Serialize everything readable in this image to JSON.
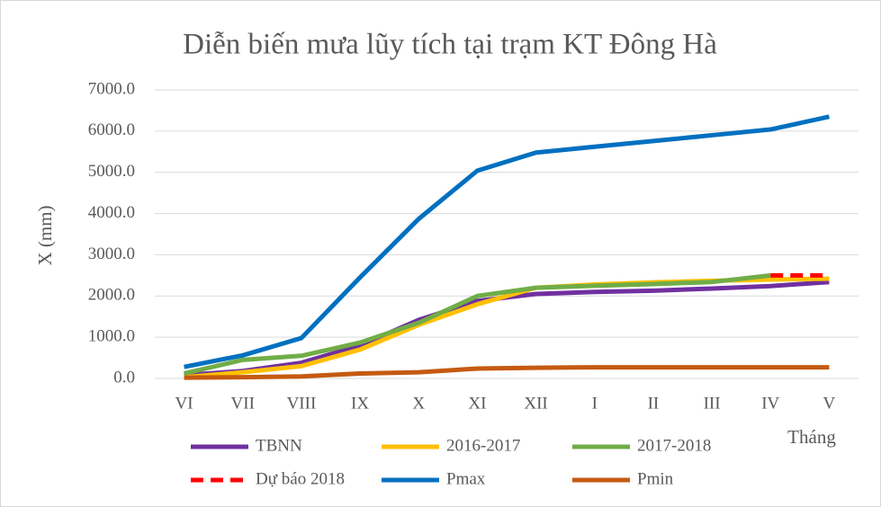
{
  "chart_data": {
    "type": "line",
    "title": "Diễn biến mưa lũy tích tại trạm KT Đông Hà",
    "y_label": "X (mm)",
    "x_label": "Tháng",
    "categories": [
      "VI",
      "VII",
      "VIII",
      "IX",
      "X",
      "XI",
      "XII",
      "I",
      "II",
      "III",
      "IV",
      "V"
    ],
    "ylim": [
      0,
      7000
    ],
    "yticks": [
      {
        "value": 0,
        "label": "0.0"
      },
      {
        "value": 1000,
        "label": "1000.0"
      },
      {
        "value": 2000,
        "label": "2000.0"
      },
      {
        "value": 3000,
        "label": "3000.0"
      },
      {
        "value": 4000,
        "label": "4000.0"
      },
      {
        "value": 5000,
        "label": "5000.0"
      },
      {
        "value": 6000,
        "label": "6000.0"
      },
      {
        "value": 7000,
        "label": "7000.0"
      }
    ],
    "grid": true,
    "legend": "bottom",
    "series": [
      {
        "name": "TBNN",
        "color": "#7030a0",
        "values": [
          80,
          180,
          380,
          800,
          1420,
          1880,
          2050,
          2100,
          2130,
          2180,
          2240,
          2340
        ]
      },
      {
        "name": "2016-2017",
        "color": "#ffc000",
        "values": [
          30,
          150,
          300,
          700,
          1300,
          1800,
          2200,
          2280,
          2330,
          2370,
          2400,
          2420
        ]
      },
      {
        "name": "2017-2018",
        "color": "#70ad47",
        "values": [
          120,
          450,
          550,
          870,
          1350,
          2000,
          2200,
          2250,
          2290,
          2340,
          2500,
          null
        ]
      },
      {
        "name": "Dự báo 2018",
        "color": "#ff0000",
        "dashed": true,
        "values": [
          null,
          null,
          null,
          null,
          null,
          null,
          null,
          null,
          null,
          null,
          2500,
          2500
        ]
      },
      {
        "name": "Pmax",
        "color": "#0070c0",
        "values": [
          280,
          560,
          980,
          2450,
          3870,
          5040,
          5480,
          5620,
          5760,
          5900,
          6040,
          6350
        ]
      },
      {
        "name": "Pmin",
        "color": "#c55a11",
        "values": [
          20,
          30,
          50,
          120,
          150,
          240,
          260,
          270,
          270,
          270,
          270,
          270
        ]
      }
    ]
  }
}
